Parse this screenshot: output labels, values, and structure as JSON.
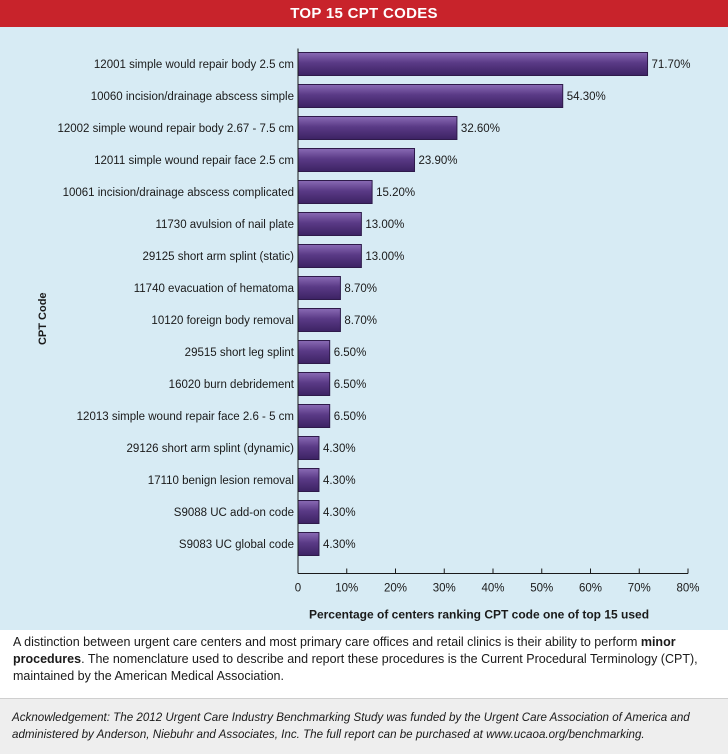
{
  "header": {
    "title": "TOP 15 CPT CODES"
  },
  "chart_data": {
    "type": "bar",
    "orientation": "horizontal",
    "title": "TOP 15 CPT CODES",
    "xlabel": "Percentage of centers ranking CPT code one of top 15 used",
    "ylabel": "CPT Code",
    "xlim": [
      0,
      80
    ],
    "xticks": [
      "0",
      "10%",
      "20%",
      "30%",
      "40%",
      "50%",
      "60%",
      "70%",
      "80%"
    ],
    "categories": [
      "12001 simple would repair body 2.5 cm",
      "10060 incision/drainage abscess simple",
      "12002 simple wound repair body 2.67 - 7.5 cm",
      "12011 simple wound repair face 2.5 cm",
      "10061 incision/drainage abscess complicated",
      "11730 avulsion of nail plate",
      "29125 short arm splint (static)",
      "11740 evacuation of hematoma",
      "10120 foreign body removal",
      "29515 short leg splint",
      "16020 burn debridement",
      "12013 simple wound repair face 2.6 - 5 cm",
      "29126 short arm splint (dynamic)",
      "17110 benign lesion removal",
      "S9088 UC add-on code",
      "S9083 UC global code"
    ],
    "values": [
      71.7,
      54.3,
      32.6,
      23.9,
      15.2,
      13.0,
      13.0,
      8.7,
      8.7,
      6.5,
      6.5,
      6.5,
      4.3,
      4.3,
      4.3,
      4.3
    ],
    "data_labels": [
      "71.70%",
      "54.30%",
      "32.60%",
      "23.90%",
      "15.20%",
      "13.00%",
      "13.00%",
      "8.70%",
      "8.70%",
      "6.50%",
      "6.50%",
      "6.50%",
      "4.30%",
      "4.30%",
      "4.30%",
      "4.30%"
    ],
    "colors": {
      "bar": "#5a3a86",
      "bar_edge": "#2e1a4a",
      "background": "#d7ebf4"
    }
  },
  "caption": {
    "text_before": "A distinction between urgent care centers and most primary care offices and retail clinics is their ability to perform ",
    "bold": "minor procedures",
    "text_after": ". The nomenclature used to describe and report these procedures is the Current Procedural Terminology (CPT), maintained by the American Medical Association."
  },
  "acknowledgement": "Acknowledgement: The 2012 Urgent Care Industry Benchmarking Study was funded by the Urgent Care Association of America and administered by Anderson, Niebuhr and Associates, Inc. The full report can be purchased at www.ucaoa.org/benchmarking."
}
